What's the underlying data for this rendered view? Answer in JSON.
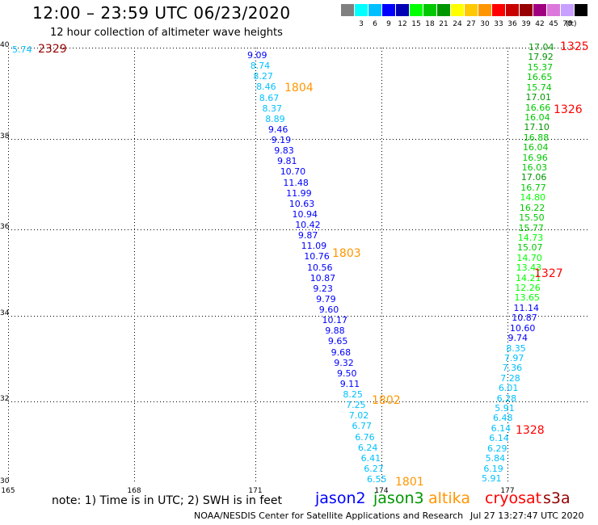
{
  "header": {
    "title": "12:00 – 23:59 UTC 06/23/2020",
    "subtitle": "12 hour collection of altimeter wave heights"
  },
  "colorbar": {
    "swatches": [
      "#808080",
      "#00ffff",
      "#00c0ff",
      "#0000ff",
      "#0000b4",
      "#00ff00",
      "#00c800",
      "#009600",
      "#ffff00",
      "#ffc800",
      "#ff9600",
      "#ff0000",
      "#c80000",
      "#960000",
      "#a00080",
      "#dc78dc",
      "#c8a0ff",
      "#000000"
    ],
    "labels": [
      "3",
      "6",
      "9",
      "12",
      "15",
      "18",
      "21",
      "24",
      "27",
      "30",
      "33",
      "36",
      "39",
      "42",
      "45",
      "70"
    ],
    "unit": "(ft)"
  },
  "axes": {
    "x_ticks": [
      "165",
      "168",
      "171",
      "174",
      "177"
    ],
    "y_ticks": [
      "40",
      "38",
      "36",
      "34",
      "32",
      "30"
    ]
  },
  "tracks": [
    {
      "satellite": "jason2",
      "points": [
        {
          "v": "9.09",
          "c": "#0000ff"
        },
        {
          "v": "8.74",
          "c": "#00c0ff"
        },
        {
          "v": "8.27",
          "c": "#00c0ff"
        },
        {
          "v": "8.46",
          "c": "#00c0ff"
        },
        {
          "v": "8.67",
          "c": "#00c0ff"
        },
        {
          "v": "8.37",
          "c": "#00c0ff"
        },
        {
          "v": "8.89",
          "c": "#00c0ff"
        },
        {
          "v": "9.46",
          "c": "#0000ff"
        },
        {
          "v": "9.19",
          "c": "#0000ff"
        },
        {
          "v": "9.83",
          "c": "#0000ff"
        },
        {
          "v": "9.81",
          "c": "#0000ff"
        },
        {
          "v": "10.70",
          "c": "#0000ff"
        },
        {
          "v": "11.48",
          "c": "#0000ff"
        },
        {
          "v": "11.99",
          "c": "#0000ff"
        },
        {
          "v": "10.63",
          "c": "#0000ff"
        },
        {
          "v": "10.94",
          "c": "#0000ff"
        },
        {
          "v": "10.42",
          "c": "#0000ff"
        },
        {
          "v": "9.87",
          "c": "#0000ff"
        },
        {
          "v": "11.09",
          "c": "#0000ff"
        },
        {
          "v": "10.76",
          "c": "#0000ff"
        },
        {
          "v": "10.56",
          "c": "#0000ff"
        },
        {
          "v": "10.87",
          "c": "#0000ff"
        },
        {
          "v": "9.23",
          "c": "#0000ff"
        },
        {
          "v": "9.79",
          "c": "#0000ff"
        },
        {
          "v": "9.60",
          "c": "#0000ff"
        },
        {
          "v": "10.17",
          "c": "#0000ff"
        },
        {
          "v": "9.88",
          "c": "#0000ff"
        },
        {
          "v": "9.65",
          "c": "#0000ff"
        },
        {
          "v": "9.68",
          "c": "#0000ff"
        },
        {
          "v": "9.32",
          "c": "#0000ff"
        },
        {
          "v": "9.50",
          "c": "#0000ff"
        },
        {
          "v": "9.11",
          "c": "#0000ff"
        },
        {
          "v": "8.25",
          "c": "#00c0ff"
        },
        {
          "v": "7.25",
          "c": "#00c0ff"
        },
        {
          "v": "7.02",
          "c": "#00c0ff"
        },
        {
          "v": "6.77",
          "c": "#00c0ff"
        },
        {
          "v": "6.76",
          "c": "#00c0ff"
        },
        {
          "v": "6.24",
          "c": "#00c0ff"
        },
        {
          "v": "6.41",
          "c": "#00c0ff"
        },
        {
          "v": "6.27",
          "c": "#00c0ff"
        },
        {
          "v": "6.55",
          "c": "#00c0ff"
        }
      ]
    },
    {
      "satellite": "cryosat",
      "points": [
        {
          "v": "17.04",
          "c": "#009600"
        },
        {
          "v": "17.92",
          "c": "#009600"
        },
        {
          "v": "15.37",
          "c": "#00c800"
        },
        {
          "v": "16.65",
          "c": "#00c800"
        },
        {
          "v": "15.74",
          "c": "#00c800"
        },
        {
          "v": "17.01",
          "c": "#009600"
        },
        {
          "v": "16.66",
          "c": "#00c800"
        },
        {
          "v": "16.04",
          "c": "#00c800"
        },
        {
          "v": "17.10",
          "c": "#009600"
        },
        {
          "v": "16.88",
          "c": "#00c800"
        },
        {
          "v": "16.04",
          "c": "#00c800"
        },
        {
          "v": "16.96",
          "c": "#00c800"
        },
        {
          "v": "16.03",
          "c": "#00c800"
        },
        {
          "v": "17.06",
          "c": "#009600"
        },
        {
          "v": "16.77",
          "c": "#00c800"
        },
        {
          "v": "14.80",
          "c": "#00ff00"
        },
        {
          "v": "16.22",
          "c": "#00c800"
        },
        {
          "v": "15.50",
          "c": "#00c800"
        },
        {
          "v": "15.77",
          "c": "#00c800"
        },
        {
          "v": "14.73",
          "c": "#00ff00"
        },
        {
          "v": "15.07",
          "c": "#00c800"
        },
        {
          "v": "14.70",
          "c": "#00ff00"
        },
        {
          "v": "13.43",
          "c": "#00ff00"
        },
        {
          "v": "14.21",
          "c": "#00ff00"
        },
        {
          "v": "12.26",
          "c": "#00ff00"
        },
        {
          "v": "13.65",
          "c": "#00ff00"
        },
        {
          "v": "11.14",
          "c": "#0000ff"
        },
        {
          "v": "10.87",
          "c": "#0000ff"
        },
        {
          "v": "10.60",
          "c": "#0000ff"
        },
        {
          "v": "9.74",
          "c": "#0000ff"
        },
        {
          "v": "8.35",
          "c": "#00c0ff"
        },
        {
          "v": "7.97",
          "c": "#00c0ff"
        },
        {
          "v": "7.36",
          "c": "#00c0ff"
        },
        {
          "v": "7.28",
          "c": "#00c0ff"
        },
        {
          "v": "6.01",
          "c": "#00c0ff"
        },
        {
          "v": "6.28",
          "c": "#00c0ff"
        },
        {
          "v": "5.91",
          "c": "#00c0ff"
        },
        {
          "v": "6.48",
          "c": "#00c0ff"
        },
        {
          "v": "6.14",
          "c": "#00c0ff"
        },
        {
          "v": "6.14",
          "c": "#00c0ff"
        },
        {
          "v": "6.29",
          "c": "#00c0ff"
        },
        {
          "v": "5.84",
          "c": "#00c0ff"
        },
        {
          "v": "6.19",
          "c": "#00c0ff"
        },
        {
          "v": "5.91",
          "c": "#00c0ff"
        }
      ]
    }
  ],
  "corner_point": {
    "v": "5.74",
    "c": "#00c0ff"
  },
  "time_labels": [
    {
      "t": "2329",
      "c": "#960000"
    },
    {
      "t": "1804",
      "c": "#ff9600"
    },
    {
      "t": "1803",
      "c": "#ff9600"
    },
    {
      "t": "1802",
      "c": "#ff9600"
    },
    {
      "t": "1801",
      "c": "#ff9600"
    },
    {
      "t": "1325",
      "c": "#ff0000"
    },
    {
      "t": "1326",
      "c": "#ff0000"
    },
    {
      "t": "1327",
      "c": "#ff0000"
    },
    {
      "t": "1328",
      "c": "#ff0000"
    }
  ],
  "note": "note:  1) Time is in UTC; 2) SWH is in feet",
  "legend": [
    {
      "name": "jason2",
      "c": "#0000ff"
    },
    {
      "name": "jason3",
      "c": "#009600"
    },
    {
      "name": "altika",
      "c": "#ff9600"
    },
    {
      "name": "cryosat",
      "c": "#ff0000"
    },
    {
      "name": "s3a",
      "c": "#960000"
    }
  ],
  "footer": {
    "left": "NOAA/NESDIS Center for Satellite Applications and Research",
    "right": "Jul 27 13:27:47 UTC 2020"
  }
}
